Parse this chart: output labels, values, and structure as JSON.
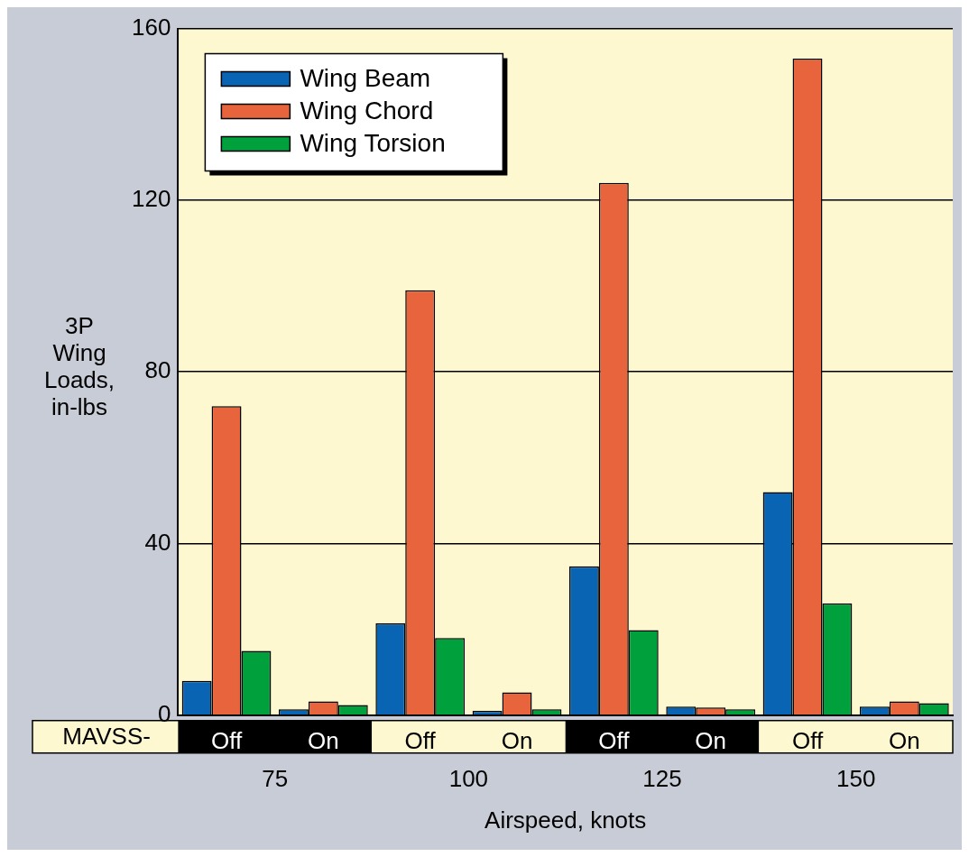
{
  "chart_data": {
    "type": "bar",
    "xlabel": "Airspeed, knots",
    "ylabel": "3P Wing Loads, in-lbs",
    "categories": [
      "Off",
      "On",
      "Off",
      "On",
      "Off",
      "On",
      "Off",
      "On"
    ],
    "series": [
      {
        "name": "Wing Beam",
        "color": "#0a64b4",
        "values": [
          8,
          1.4,
          21.4,
          1,
          34.7,
          2,
          52,
          2
        ]
      },
      {
        "name": "Wing Chord",
        "color": "#e8643c",
        "values": [
          72,
          3.2,
          99,
          5.3,
          124,
          1.8,
          153,
          3.2
        ]
      },
      {
        "name": "Wing Torsion",
        "color": "#00a03c",
        "values": [
          15,
          2.4,
          18,
          1.4,
          19.8,
          1.4,
          26,
          2.8
        ]
      }
    ],
    "ylim": [
      0,
      160
    ],
    "yticks": [
      0,
      40,
      80,
      120,
      160
    ],
    "grid": "y",
    "legend": "top left",
    "annotations": [
      "MAVSS-",
      "75",
      "100",
      "125",
      "150"
    ]
  }
}
